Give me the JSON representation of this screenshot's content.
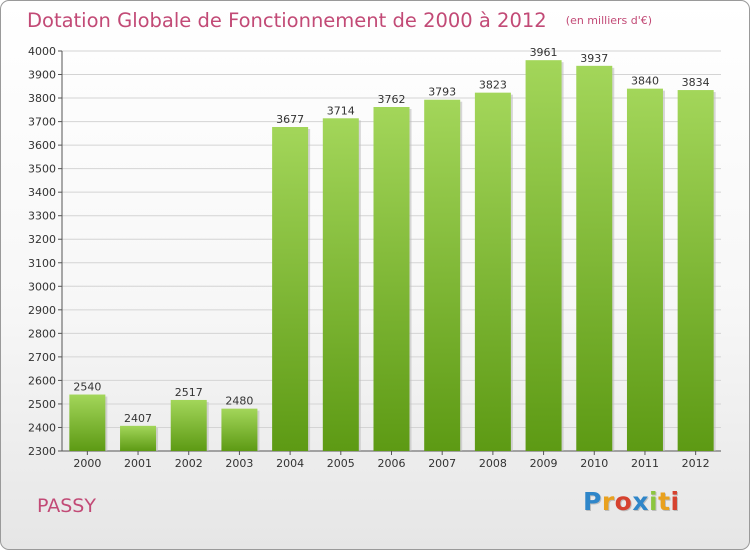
{
  "header": {
    "title": "Dotation Globale de Fonctionnement de 2000 à 2012",
    "unit": "(en milliers d'€)"
  },
  "footer": {
    "commune": "PASSY",
    "logo_letters": [
      {
        "ch": "P",
        "color": "#2f86c9"
      },
      {
        "ch": "r",
        "color": "#e9a11e"
      },
      {
        "ch": "o",
        "color": "#d6422f"
      },
      {
        "ch": "x",
        "color": "#2f86c9"
      },
      {
        "ch": "i",
        "color": "#8cc63f"
      },
      {
        "ch": "t",
        "color": "#e9a11e"
      },
      {
        "ch": "i",
        "color": "#d6422f"
      }
    ]
  },
  "colors": {
    "text": "#c24a76",
    "bar_light": "#a3d65a",
    "bar_dark": "#5d9a14"
  },
  "chart_data": {
    "type": "bar",
    "title": "Dotation Globale de Fonctionnement de 2000 à 2012",
    "subtitle": "(en milliers d'€)",
    "categories": [
      "2000",
      "2001",
      "2002",
      "2003",
      "2004",
      "2005",
      "2006",
      "2007",
      "2008",
      "2009",
      "2010",
      "2011",
      "2012"
    ],
    "values": [
      2540,
      2407,
      2517,
      2480,
      3677,
      3714,
      3762,
      3793,
      3823,
      3961,
      3937,
      3840,
      3834
    ],
    "ylim": [
      2300,
      4000
    ],
    "yticks": [
      2300,
      2400,
      2500,
      2600,
      2700,
      2800,
      2900,
      3000,
      3100,
      3200,
      3300,
      3400,
      3500,
      3600,
      3700,
      3800,
      3900,
      4000
    ],
    "grid": true,
    "xlabel": "",
    "ylabel": ""
  }
}
